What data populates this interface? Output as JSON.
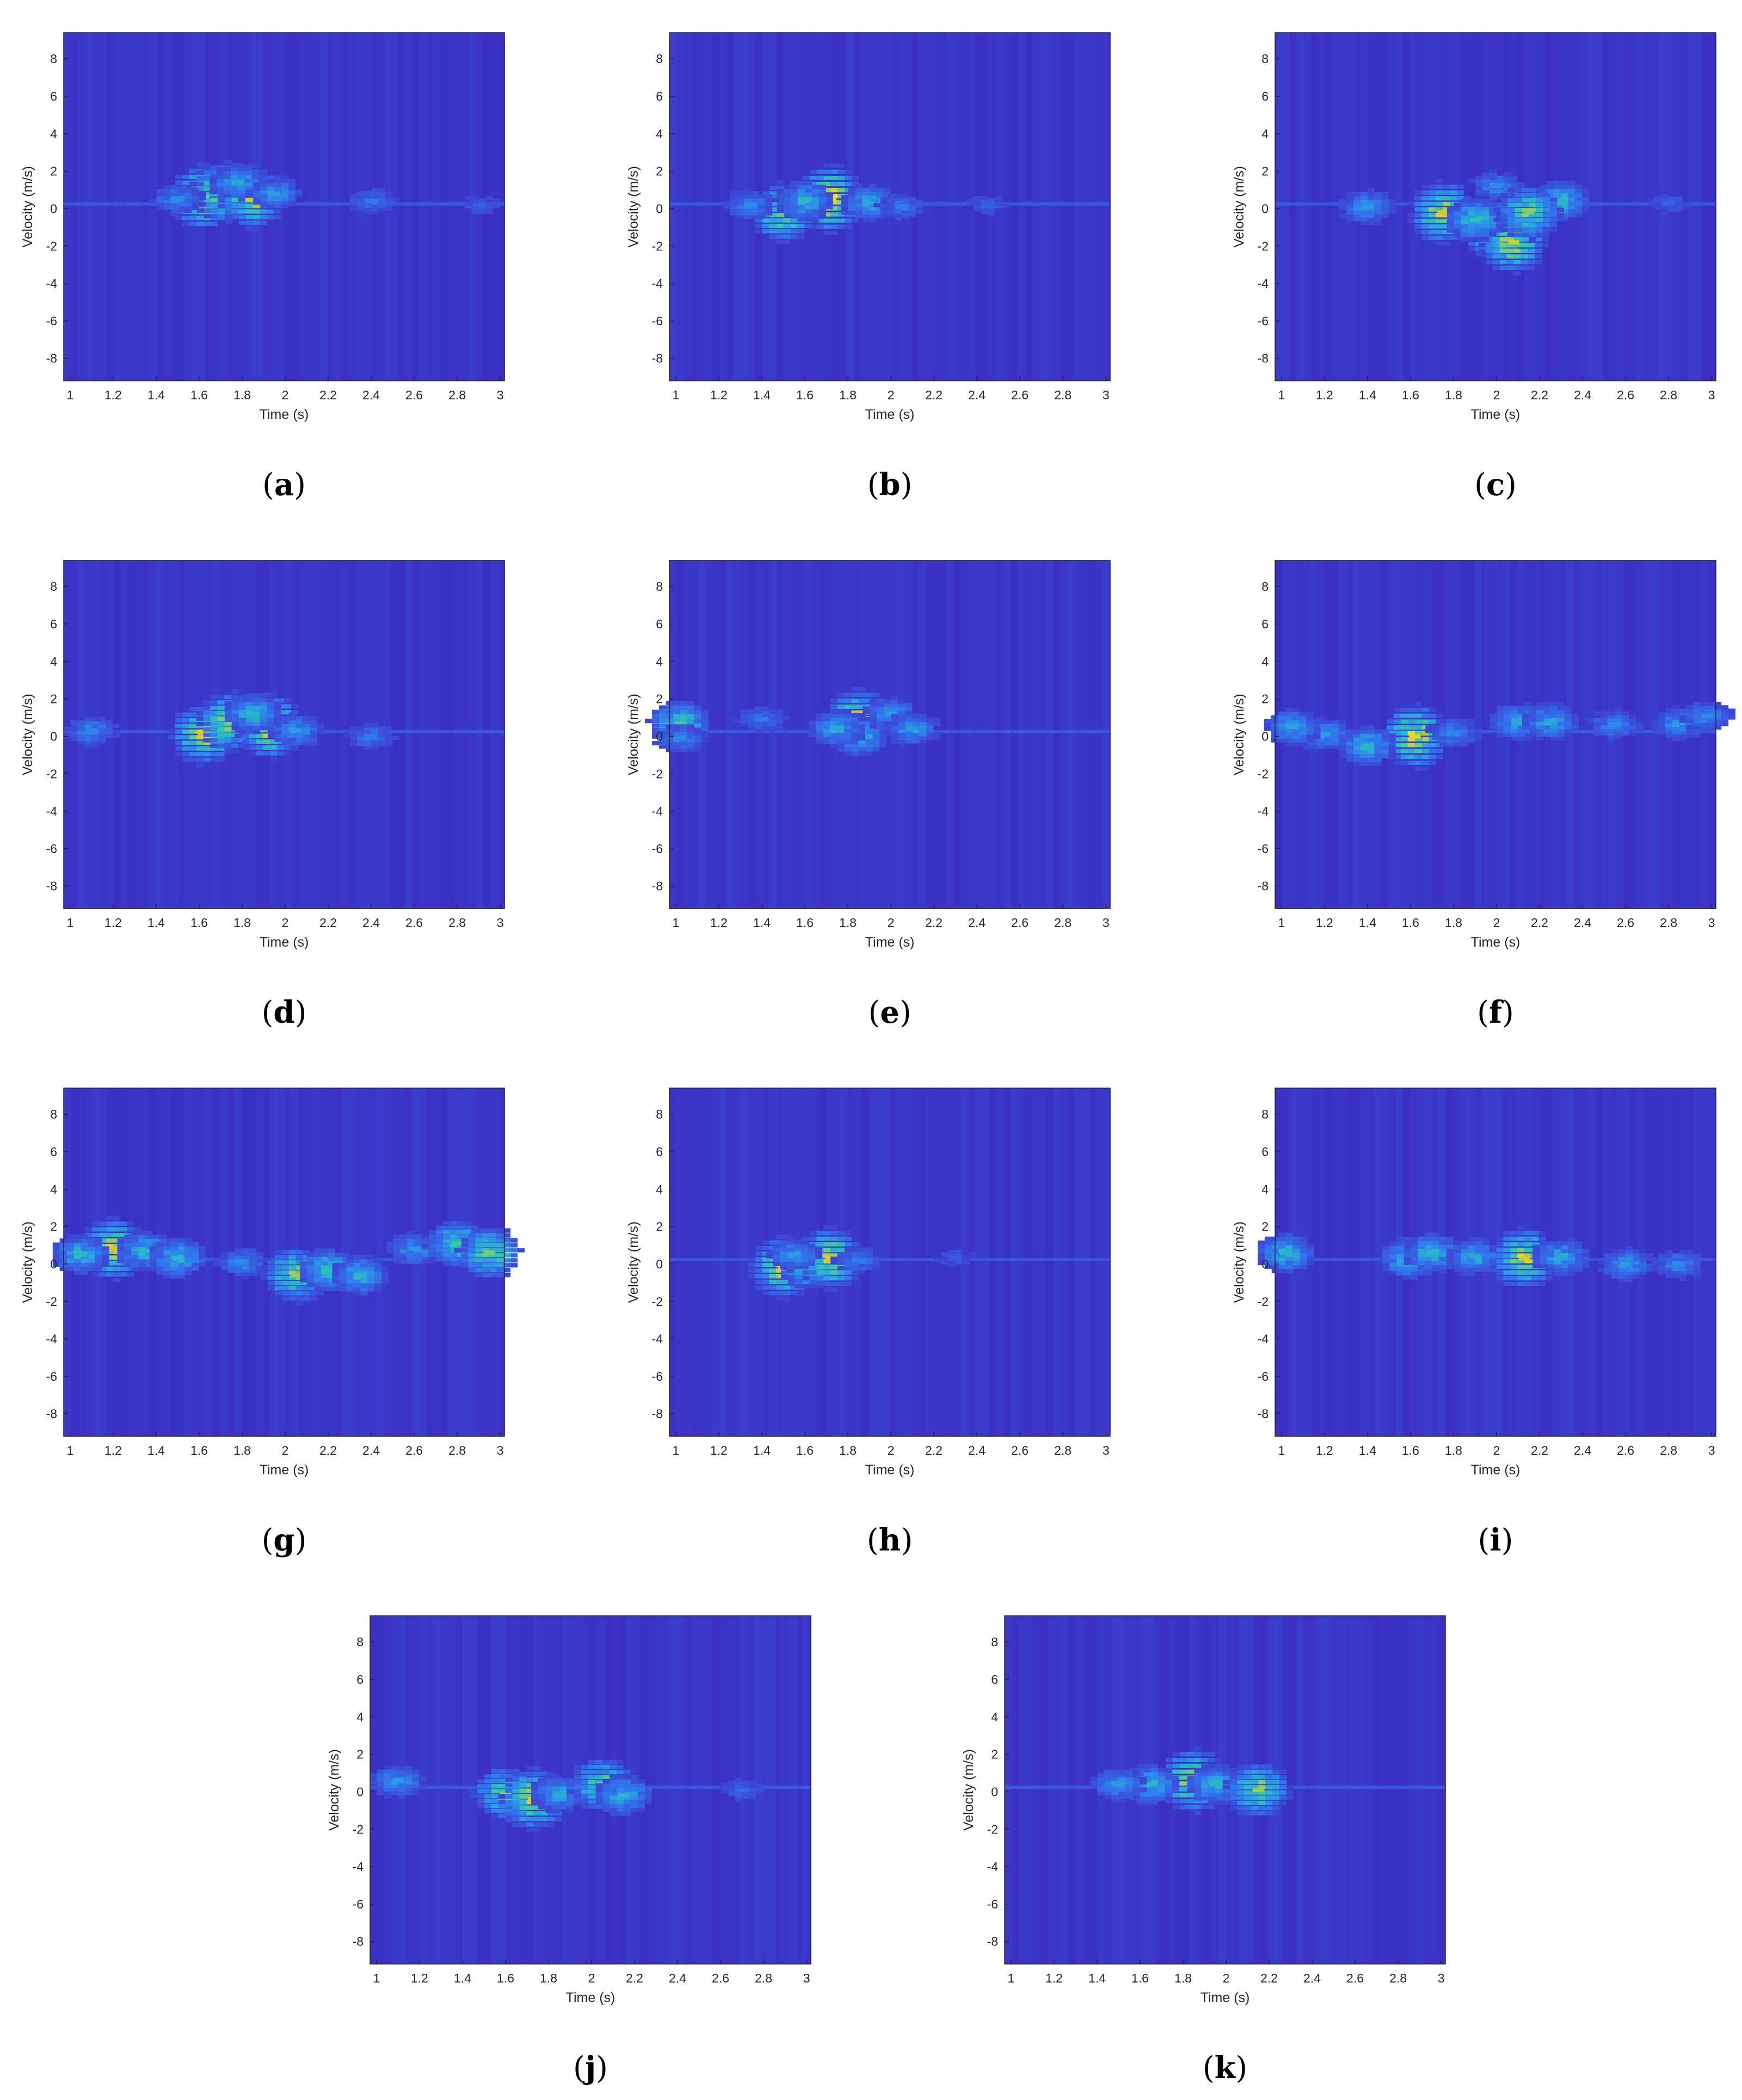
{
  "colors": {
    "background": "#3b2bbf",
    "colormap": [
      "#3b2bbf",
      "#3c4ad6",
      "#3175ec",
      "#2aa4e0",
      "#2bc6b1",
      "#7fd06a",
      "#d8c836",
      "#f2e61a"
    ],
    "axis": "#262626"
  },
  "chart_data": [
    {
      "type": "heatmap",
      "panel": "a",
      "caption": "(a)",
      "xlabel": "Time (s)",
      "ylabel": "Velocity (m/s)",
      "xlim": [
        0.97,
        3.02
      ],
      "ylim": [
        -9.2,
        9.4
      ],
      "xticks": [
        "1",
        "1.2",
        "1.4",
        "1.6",
        "1.8",
        "2",
        "2.2",
        "2.4",
        "2.6",
        "2.8",
        "3"
      ],
      "yticks": [
        "-8",
        "-6",
        "-4",
        "-2",
        "0",
        "2",
        "4",
        "6",
        "8"
      ],
      "blobs": [
        {
          "t": 1.62,
          "v": 0.6,
          "i": 0.9
        },
        {
          "t": 1.72,
          "v": 0.9,
          "i": 0.8
        },
        {
          "t": 1.85,
          "v": 0.6,
          "i": 0.85
        },
        {
          "t": 1.78,
          "v": 1.4,
          "i": 0.45
        },
        {
          "t": 1.95,
          "v": 0.8,
          "i": 0.4
        },
        {
          "t": 1.5,
          "v": 0.5,
          "i": 0.35
        },
        {
          "t": 2.4,
          "v": 0.4,
          "i": 0.3
        },
        {
          "t": 2.9,
          "v": 0.2,
          "i": 0.22
        }
      ]
    },
    {
      "type": "heatmap",
      "panel": "b",
      "caption": "(b)",
      "xlabel": "Time (s)",
      "ylabel": "Velocity (m/s)",
      "xlim": [
        0.97,
        3.02
      ],
      "ylim": [
        -9.2,
        9.4
      ],
      "xticks": [
        "1",
        "1.2",
        "1.4",
        "1.6",
        "1.8",
        "2",
        "2.2",
        "2.4",
        "2.6",
        "2.8",
        "3"
      ],
      "yticks": [
        "-8",
        "-6",
        "-4",
        "-2",
        "0",
        "2",
        "4",
        "6",
        "8"
      ],
      "blobs": [
        {
          "t": 1.72,
          "v": 0.5,
          "i": 0.95
        },
        {
          "t": 1.5,
          "v": -0.2,
          "i": 0.8
        },
        {
          "t": 1.6,
          "v": 0.4,
          "i": 0.5
        },
        {
          "t": 1.9,
          "v": 0.3,
          "i": 0.45
        },
        {
          "t": 1.35,
          "v": 0.2,
          "i": 0.35
        },
        {
          "t": 2.05,
          "v": 0.1,
          "i": 0.3
        },
        {
          "t": 2.45,
          "v": 0.2,
          "i": 0.22
        }
      ]
    },
    {
      "type": "heatmap",
      "panel": "c",
      "caption": "(c)",
      "xlabel": "Time (s)",
      "ylabel": "Velocity (m/s)",
      "xlim": [
        0.97,
        3.02
      ],
      "ylim": [
        -9.2,
        9.4
      ],
      "xticks": [
        "1",
        "1.2",
        "1.4",
        "1.6",
        "1.8",
        "2",
        "2.2",
        "2.4",
        "2.6",
        "2.8",
        "3"
      ],
      "yticks": [
        "-8",
        "-6",
        "-4",
        "-2",
        "0",
        "2",
        "4",
        "6",
        "8"
      ],
      "blobs": [
        {
          "t": 1.75,
          "v": -0.2,
          "i": 0.85
        },
        {
          "t": 2.0,
          "v": -1.2,
          "i": 0.75
        },
        {
          "t": 2.08,
          "v": -1.8,
          "i": 0.85
        },
        {
          "t": 1.9,
          "v": -0.6,
          "i": 0.55
        },
        {
          "t": 2.0,
          "v": 1.2,
          "i": 0.35
        },
        {
          "t": 2.3,
          "v": 0.4,
          "i": 0.5
        },
        {
          "t": 2.15,
          "v": -0.2,
          "i": 0.7
        },
        {
          "t": 1.4,
          "v": 0.1,
          "i": 0.4
        },
        {
          "t": 2.8,
          "v": 0.3,
          "i": 0.22
        }
      ]
    },
    {
      "type": "heatmap",
      "panel": "d",
      "caption": "(d)",
      "xlabel": "Time (s)",
      "ylabel": "Velocity (m/s)",
      "xlim": [
        0.97,
        3.02
      ],
      "ylim": [
        -9.2,
        9.4
      ],
      "xticks": [
        "1",
        "1.2",
        "1.4",
        "1.6",
        "1.8",
        "2",
        "2.2",
        "2.4",
        "2.6",
        "2.8",
        "3"
      ],
      "yticks": [
        "-8",
        "-6",
        "-4",
        "-2",
        "0",
        "2",
        "4",
        "6",
        "8"
      ],
      "blobs": [
        {
          "t": 1.62,
          "v": 0.1,
          "i": 0.85
        },
        {
          "t": 1.75,
          "v": 0.8,
          "i": 0.8
        },
        {
          "t": 1.93,
          "v": 0.5,
          "i": 0.9
        },
        {
          "t": 1.85,
          "v": 1.2,
          "i": 0.5
        },
        {
          "t": 2.05,
          "v": 0.3,
          "i": 0.4
        },
        {
          "t": 1.1,
          "v": 0.3,
          "i": 0.35
        },
        {
          "t": 2.4,
          "v": 0.0,
          "i": 0.3
        }
      ]
    },
    {
      "type": "heatmap",
      "panel": "e",
      "caption": "(e)",
      "xlabel": "Time (s)",
      "ylabel": "Velocity (m/s)",
      "xlim": [
        0.97,
        3.02
      ],
      "ylim": [
        -9.2,
        9.4
      ],
      "xticks": [
        "1",
        "1.2",
        "1.4",
        "1.6",
        "1.8",
        "2",
        "2.2",
        "2.4",
        "2.6",
        "2.8",
        "3"
      ],
      "yticks": [
        "-8",
        "-6",
        "-4",
        "-2",
        "0",
        "2",
        "4",
        "6",
        "8"
      ],
      "blobs": [
        {
          "t": 1.85,
          "v": 0.8,
          "i": 0.9
        },
        {
          "t": 1.85,
          "v": 0.1,
          "i": 0.55
        },
        {
          "t": 1.75,
          "v": 0.4,
          "i": 0.45
        },
        {
          "t": 2.0,
          "v": 1.2,
          "i": 0.4
        },
        {
          "t": 2.1,
          "v": 0.4,
          "i": 0.4
        },
        {
          "t": 1.02,
          "v": 0.7,
          "i": 0.6
        },
        {
          "t": 1.02,
          "v": -0.1,
          "i": 0.35
        },
        {
          "t": 1.4,
          "v": 0.9,
          "i": 0.3
        }
      ]
    },
    {
      "type": "heatmap",
      "panel": "f",
      "caption": "(f)",
      "xlabel": "Time (s)",
      "ylabel": "Velocity (m/s)",
      "xlim": [
        0.97,
        3.02
      ],
      "ylim": [
        -9.2,
        9.4
      ],
      "xticks": [
        "1",
        "1.2",
        "1.4",
        "1.6",
        "1.8",
        "2",
        "2.2",
        "2.4",
        "2.6",
        "2.8",
        "3"
      ],
      "yticks": [
        "-8",
        "-6",
        "-4",
        "-2",
        "0",
        "2",
        "4",
        "6",
        "8"
      ],
      "blobs": [
        {
          "t": 1.62,
          "v": 0.0,
          "i": 0.9
        },
        {
          "t": 1.4,
          "v": -0.5,
          "i": 0.5
        },
        {
          "t": 1.2,
          "v": 0.1,
          "i": 0.4
        },
        {
          "t": 1.05,
          "v": 0.5,
          "i": 0.45
        },
        {
          "t": 1.8,
          "v": 0.2,
          "i": 0.35
        },
        {
          "t": 2.1,
          "v": 0.8,
          "i": 0.45
        },
        {
          "t": 2.25,
          "v": 0.8,
          "i": 0.45
        },
        {
          "t": 2.55,
          "v": 0.6,
          "i": 0.35
        },
        {
          "t": 2.85,
          "v": 0.7,
          "i": 0.4
        },
        {
          "t": 2.98,
          "v": 1.1,
          "i": 0.35
        }
      ]
    },
    {
      "type": "heatmap",
      "panel": "g",
      "caption": "(g)",
      "xlabel": "Time (s)",
      "ylabel": "Velocity (m/s)",
      "xlim": [
        0.97,
        3.02
      ],
      "ylim": [
        -9.2,
        9.4
      ],
      "xticks": [
        "1",
        "1.2",
        "1.4",
        "1.6",
        "1.8",
        "2",
        "2.2",
        "2.4",
        "2.6",
        "2.8",
        "3"
      ],
      "yticks": [
        "-8",
        "-6",
        "-4",
        "-2",
        "0",
        "2",
        "4",
        "6",
        "8"
      ],
      "blobs": [
        {
          "t": 1.2,
          "v": 0.8,
          "i": 0.85
        },
        {
          "t": 1.05,
          "v": 0.5,
          "i": 0.5
        },
        {
          "t": 1.35,
          "v": 0.7,
          "i": 0.5
        },
        {
          "t": 1.5,
          "v": 0.3,
          "i": 0.5
        },
        {
          "t": 1.8,
          "v": 0.1,
          "i": 0.35
        },
        {
          "t": 2.05,
          "v": -0.6,
          "i": 0.75
        },
        {
          "t": 2.2,
          "v": -0.3,
          "i": 0.55
        },
        {
          "t": 2.35,
          "v": -0.6,
          "i": 0.5
        },
        {
          "t": 2.6,
          "v": 0.8,
          "i": 0.4
        },
        {
          "t": 2.8,
          "v": 1.1,
          "i": 0.6
        },
        {
          "t": 2.95,
          "v": 0.6,
          "i": 0.7
        }
      ]
    },
    {
      "type": "heatmap",
      "panel": "h",
      "caption": "(h)",
      "xlabel": "Time (s)",
      "ylabel": "Velocity (m/s)",
      "xlim": [
        0.97,
        3.02
      ],
      "ylim": [
        -9.2,
        9.4
      ],
      "xticks": [
        "1",
        "1.2",
        "1.4",
        "1.6",
        "1.8",
        "2",
        "2.2",
        "2.4",
        "2.6",
        "2.8",
        "3"
      ],
      "yticks": [
        "-8",
        "-6",
        "-4",
        "-2",
        "0",
        "2",
        "4",
        "6",
        "8"
      ],
      "blobs": [
        {
          "t": 1.5,
          "v": -0.2,
          "i": 0.85
        },
        {
          "t": 1.62,
          "v": -0.1,
          "i": 0.6
        },
        {
          "t": 1.72,
          "v": 0.3,
          "i": 0.85
        },
        {
          "t": 1.55,
          "v": 0.5,
          "i": 0.4
        },
        {
          "t": 1.85,
          "v": 0.2,
          "i": 0.3
        },
        {
          "t": 2.3,
          "v": 0.3,
          "i": 0.2
        }
      ]
    },
    {
      "type": "heatmap",
      "panel": "i",
      "caption": "(i)",
      "xlabel": "Time (s)",
      "ylabel": "Velocity (m/s)",
      "xlim": [
        0.97,
        3.02
      ],
      "ylim": [
        -9.2,
        9.4
      ],
      "xticks": [
        "1",
        "1.2",
        "1.4",
        "1.6",
        "1.8",
        "2",
        "2.2",
        "2.4",
        "2.6",
        "2.8",
        "3"
      ],
      "yticks": [
        "-8",
        "-6",
        "-4",
        "-2",
        "0",
        "2",
        "4",
        "6",
        "8"
      ],
      "blobs": [
        {
          "t": 1.02,
          "v": 0.6,
          "i": 0.5
        },
        {
          "t": 1.6,
          "v": 0.3,
          "i": 0.55
        },
        {
          "t": 1.7,
          "v": 0.6,
          "i": 0.5
        },
        {
          "t": 1.9,
          "v": 0.4,
          "i": 0.45
        },
        {
          "t": 2.13,
          "v": 0.3,
          "i": 0.85
        },
        {
          "t": 2.3,
          "v": 0.4,
          "i": 0.45
        },
        {
          "t": 2.6,
          "v": 0.0,
          "i": 0.4
        },
        {
          "t": 2.85,
          "v": 0.0,
          "i": 0.35
        }
      ]
    },
    {
      "type": "heatmap",
      "panel": "j",
      "caption": "(j)",
      "xlabel": "Time (s)",
      "ylabel": "Velocity (m/s)",
      "xlim": [
        0.97,
        3.02
      ],
      "ylim": [
        -9.2,
        9.4
      ],
      "xticks": [
        "1",
        "1.2",
        "1.4",
        "1.6",
        "1.8",
        "2",
        "2.2",
        "2.4",
        "2.6",
        "2.8",
        "3"
      ],
      "yticks": [
        "-8",
        "-6",
        "-4",
        "-2",
        "0",
        "2",
        "4",
        "6",
        "8"
      ],
      "blobs": [
        {
          "t": 1.1,
          "v": 0.6,
          "i": 0.4
        },
        {
          "t": 1.6,
          "v": -0.1,
          "i": 0.7
        },
        {
          "t": 1.73,
          "v": -0.4,
          "i": 0.85
        },
        {
          "t": 1.85,
          "v": -0.1,
          "i": 0.45
        },
        {
          "t": 2.05,
          "v": 0.4,
          "i": 0.7
        },
        {
          "t": 2.15,
          "v": -0.2,
          "i": 0.5
        },
        {
          "t": 2.7,
          "v": 0.1,
          "i": 0.25
        }
      ]
    },
    {
      "type": "heatmap",
      "panel": "k",
      "caption": "(k)",
      "xlabel": "Time (s)",
      "ylabel": "Velocity (m/s)",
      "xlim": [
        0.97,
        3.02
      ],
      "ylim": [
        -9.2,
        9.4
      ],
      "xticks": [
        "1",
        "1.2",
        "1.4",
        "1.6",
        "1.8",
        "2",
        "2.2",
        "2.4",
        "2.6",
        "2.8",
        "3"
      ],
      "yticks": [
        "-8",
        "-6",
        "-4",
        "-2",
        "0",
        "2",
        "4",
        "6",
        "8"
      ],
      "blobs": [
        {
          "t": 1.85,
          "v": 0.6,
          "i": 0.9
        },
        {
          "t": 1.65,
          "v": 0.4,
          "i": 0.5
        },
        {
          "t": 1.95,
          "v": 0.4,
          "i": 0.5
        },
        {
          "t": 1.5,
          "v": 0.4,
          "i": 0.4
        },
        {
          "t": 2.15,
          "v": 0.1,
          "i": 0.75
        }
      ]
    }
  ]
}
